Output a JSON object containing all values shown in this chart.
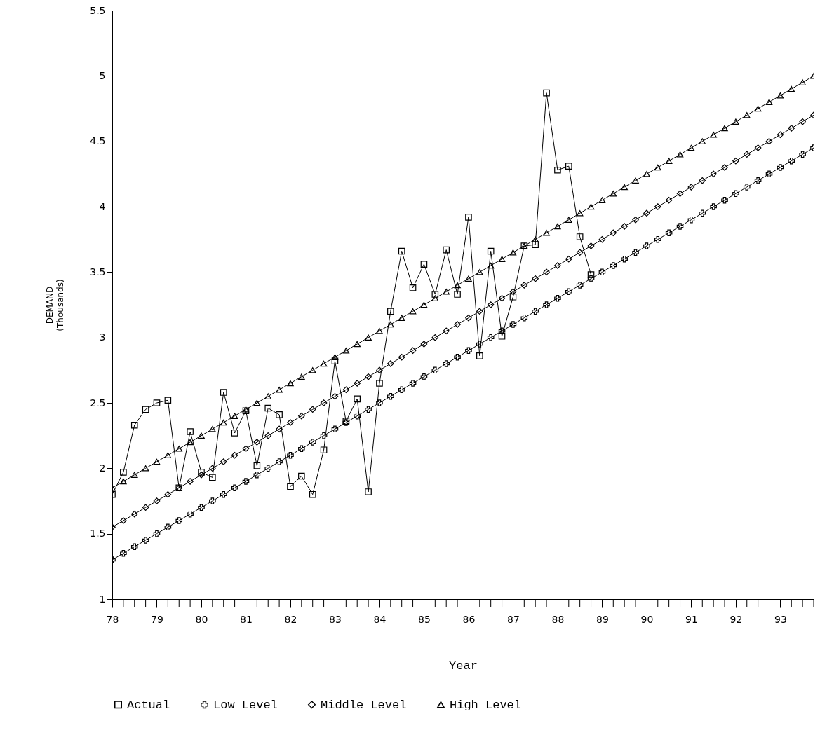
{
  "chart_data": {
    "type": "line",
    "xlabel": "Year",
    "ylabel": "DEMAND\n(Thousands)",
    "x": [
      78,
      78.25,
      78.5,
      78.75,
      79,
      79.25,
      79.5,
      79.75,
      80,
      80.25,
      80.5,
      80.75,
      81,
      81.25,
      81.5,
      81.75,
      82,
      82.25,
      82.5,
      82.75,
      83,
      83.25,
      83.5,
      83.75,
      84,
      84.25,
      84.5,
      84.75,
      85,
      85.25,
      85.5,
      85.75,
      86,
      86.25,
      86.5,
      86.75,
      87,
      87.25,
      87.5,
      87.75,
      88,
      88.25,
      88.5,
      88.75,
      89,
      89.25,
      89.5,
      89.75,
      90,
      90.25,
      90.5,
      90.75,
      91,
      91.25,
      91.5,
      91.75,
      92,
      92.25,
      92.5,
      92.75,
      93,
      93.25,
      93.5,
      93.75
    ],
    "series": [
      {
        "name": "Actual",
        "color": "#000000",
        "marker": "square",
        "x": [
          78,
          78.25,
          78.5,
          78.75,
          79,
          79.25,
          79.5,
          79.75,
          80,
          80.25,
          80.5,
          80.75,
          81,
          81.25,
          81.5,
          81.75,
          82,
          82.25,
          82.5,
          82.75,
          83,
          83.25,
          83.5,
          83.75,
          84,
          84.25,
          84.5,
          84.75,
          85,
          85.25,
          85.5,
          85.75,
          86,
          86.25,
          86.5,
          86.75,
          87,
          87.25,
          87.5,
          87.75,
          88,
          88.25,
          88.5,
          88.75
        ],
        "values": [
          1.8,
          1.97,
          2.33,
          2.45,
          2.5,
          2.52,
          1.85,
          2.28,
          1.97,
          1.93,
          2.58,
          2.27,
          2.44,
          2.02,
          2.46,
          2.41,
          1.86,
          1.94,
          1.8,
          2.14,
          2.82,
          2.36,
          2.53,
          1.82,
          2.65,
          3.2,
          3.66,
          3.38,
          3.56,
          3.33,
          3.67,
          3.33,
          3.92,
          2.86,
          3.66,
          3.01,
          3.31,
          3.7,
          3.71,
          4.87,
          4.28,
          4.31,
          3.77,
          3.48
        ]
      },
      {
        "name": "Low Level",
        "color": "#000000",
        "marker": "cross",
        "values": [
          1.3,
          1.35,
          1.4,
          1.45,
          1.5,
          1.55,
          1.6,
          1.65,
          1.7,
          1.75,
          1.8,
          1.85,
          1.9,
          1.95,
          2,
          2.05,
          2.1,
          2.15,
          2.2,
          2.25,
          2.3,
          2.35,
          2.4,
          2.45,
          2.5,
          2.55,
          2.6,
          2.65,
          2.7,
          2.75,
          2.8,
          2.85,
          2.9,
          2.95,
          3,
          3.05,
          3.1,
          3.15,
          3.2,
          3.25,
          3.3,
          3.35,
          3.4,
          3.45,
          3.5,
          3.55,
          3.6,
          3.65,
          3.7,
          3.75,
          3.8,
          3.85,
          3.9,
          3.95,
          4,
          4.05,
          4.1,
          4.15,
          4.2,
          4.25,
          4.3,
          4.35,
          4.4,
          4.45
        ]
      },
      {
        "name": "Middle Level",
        "color": "#000000",
        "marker": "diamond",
        "values": [
          1.55,
          1.6,
          1.65,
          1.7,
          1.75,
          1.8,
          1.85,
          1.9,
          1.95,
          2,
          2.05,
          2.1,
          2.15,
          2.2,
          2.25,
          2.3,
          2.35,
          2.4,
          2.45,
          2.5,
          2.55,
          2.6,
          2.65,
          2.7,
          2.75,
          2.8,
          2.85,
          2.9,
          2.95,
          3,
          3.05,
          3.1,
          3.15,
          3.2,
          3.25,
          3.3,
          3.35,
          3.4,
          3.45,
          3.5,
          3.55,
          3.6,
          3.65,
          3.7,
          3.75,
          3.8,
          3.85,
          3.9,
          3.95,
          4,
          4.05,
          4.1,
          4.15,
          4.2,
          4.25,
          4.3,
          4.35,
          4.4,
          4.45,
          4.5,
          4.55,
          4.6,
          4.65,
          4.7
        ]
      },
      {
        "name": "High Level",
        "color": "#000000",
        "marker": "triangle",
        "values": [
          1.85,
          1.9,
          1.95,
          2,
          2.05,
          2.1,
          2.15,
          2.2,
          2.25,
          2.3,
          2.35,
          2.4,
          2.45,
          2.5,
          2.55,
          2.6,
          2.65,
          2.7,
          2.75,
          2.8,
          2.85,
          2.9,
          2.95,
          3,
          3.05,
          3.1,
          3.15,
          3.2,
          3.25,
          3.3,
          3.35,
          3.4,
          3.45,
          3.5,
          3.55,
          3.6,
          3.65,
          3.7,
          3.75,
          3.8,
          3.85,
          3.9,
          3.95,
          4,
          4.05,
          4.1,
          4.15,
          4.2,
          4.25,
          4.3,
          4.35,
          4.4,
          4.45,
          4.5,
          4.55,
          4.6,
          4.65,
          4.7,
          4.75,
          4.8,
          4.85,
          4.9,
          4.95,
          5
        ]
      }
    ],
    "xlim": [
      78,
      93.75
    ],
    "xticks": [
      78,
      {
        "value": 78.25,
        "label": null
      },
      {
        "value": 78.5,
        "label": null
      },
      {
        "value": 78.75,
        "label": null
      },
      79,
      {
        "value": 79.25,
        "label": null
      },
      {
        "value": 79.5,
        "label": null
      },
      {
        "value": 79.75,
        "label": null
      },
      80,
      {
        "value": 80.25,
        "label": null
      },
      {
        "value": 80.5,
        "label": null
      },
      {
        "value": 80.75,
        "label": null
      },
      81,
      {
        "value": 81.25,
        "label": null
      },
      {
        "value": 81.5,
        "label": null
      },
      {
        "value": 81.75,
        "label": null
      },
      82,
      {
        "value": 82.25,
        "label": null
      },
      {
        "value": 82.5,
        "label": null
      },
      {
        "value": 82.75,
        "label": null
      },
      83,
      {
        "value": 83.25,
        "label": null
      },
      {
        "value": 83.5,
        "label": null
      },
      {
        "value": 83.75,
        "label": null
      },
      84,
      {
        "value": 84.25,
        "label": null
      },
      {
        "value": 84.5,
        "label": null
      },
      {
        "value": 84.75,
        "label": null
      },
      85,
      {
        "value": 85.25,
        "label": null
      },
      {
        "value": 85.5,
        "label": null
      },
      {
        "value": 85.75,
        "label": null
      },
      86,
      {
        "value": 86.25,
        "label": null
      },
      {
        "value": 86.5,
        "label": null
      },
      {
        "value": 86.75,
        "label": null
      },
      87,
      {
        "value": 87.25,
        "label": null
      },
      {
        "value": 87.5,
        "label": null
      },
      {
        "value": 87.75,
        "label": null
      },
      88,
      {
        "value": 88.25,
        "label": null
      },
      {
        "value": 88.5,
        "label": null
      },
      {
        "value": 88.75,
        "label": null
      },
      89,
      {
        "value": 89.25,
        "label": null
      },
      {
        "value": 89.5,
        "label": null
      },
      {
        "value": 89.75,
        "label": null
      },
      90,
      {
        "value": 90.25,
        "label": null
      },
      {
        "value": 90.5,
        "label": null
      },
      {
        "value": 90.75,
        "label": null
      },
      91,
      {
        "value": 91.25,
        "label": null
      },
      {
        "value": 91.5,
        "label": null
      },
      {
        "value": 91.75,
        "label": null
      },
      92,
      {
        "value": 92.25,
        "label": null
      },
      {
        "value": 92.5,
        "label": null
      },
      {
        "value": 92.75,
        "label": null
      },
      93,
      {
        "value": 93.25,
        "label": null
      },
      {
        "value": 93.5,
        "label": null
      },
      {
        "value": 93.75,
        "label": null
      }
    ],
    "ylim": [
      1,
      5.5
    ],
    "yticks": [
      1,
      1.5,
      2,
      2.5,
      3,
      3.5,
      4,
      4.5,
      5,
      5.5
    ],
    "legend": "bottom",
    "line_style": "solid"
  }
}
